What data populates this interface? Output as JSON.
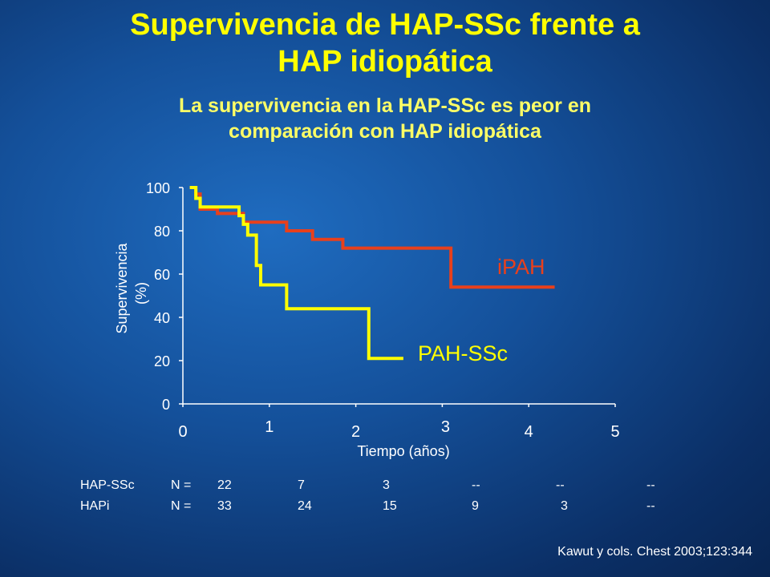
{
  "title_lines": [
    "Supervivencia de HAP-SSc frente a",
    "HAP idiopática"
  ],
  "subtitle_lines": [
    "La supervivencia en la HAP-SSc es peor en",
    "comparación con HAP idiopática"
  ],
  "chart_data": {
    "type": "line",
    "xlabel": "Tiempo (años)",
    "ylabel_lines": [
      "Supervivencia",
      "(%)"
    ],
    "xlim": [
      0,
      5
    ],
    "ylim": [
      0,
      100
    ],
    "x_ticks": [
      0,
      1,
      2,
      3,
      4,
      5
    ],
    "y_ticks": [
      0,
      20,
      40,
      60,
      80,
      100
    ],
    "grid": false,
    "series": [
      {
        "name": "iPAH",
        "color": "#e8401c",
        "steps": [
          [
            0.08,
            100
          ],
          [
            0.15,
            97
          ],
          [
            0.2,
            94
          ],
          [
            0.2,
            90
          ],
          [
            0.4,
            90
          ],
          [
            0.4,
            88
          ],
          [
            0.7,
            88
          ],
          [
            0.7,
            86
          ],
          [
            0.7,
            84
          ],
          [
            1.2,
            84
          ],
          [
            1.2,
            80
          ],
          [
            1.5,
            80
          ],
          [
            1.5,
            76
          ],
          [
            1.85,
            76
          ],
          [
            1.85,
            72
          ],
          [
            3.1,
            72
          ],
          [
            3.1,
            54
          ],
          [
            4.3,
            54
          ]
        ]
      },
      {
        "name": "PAH-SSc",
        "color": "#ffff00",
        "steps": [
          [
            0.08,
            100
          ],
          [
            0.15,
            95
          ],
          [
            0.2,
            91
          ],
          [
            0.65,
            91
          ],
          [
            0.65,
            87
          ],
          [
            0.7,
            83
          ],
          [
            0.75,
            78
          ],
          [
            0.85,
            72
          ],
          [
            0.85,
            64
          ],
          [
            0.9,
            64
          ],
          [
            0.9,
            55
          ],
          [
            1.2,
            55
          ],
          [
            1.2,
            44
          ],
          [
            2.15,
            44
          ],
          [
            2.15,
            21
          ],
          [
            2.55,
            21
          ]
        ]
      }
    ]
  },
  "risk_table": {
    "rows": [
      {
        "group": "HAP-SSc",
        "n_label": "N =",
        "values": [
          "22",
          "7",
          "3",
          "--",
          "--",
          "--"
        ]
      },
      {
        "group": "HAPi",
        "n_label": "N =",
        "values": [
          "33",
          "24",
          "15",
          "9",
          "3",
          "--"
        ]
      }
    ]
  },
  "citation": "Kawut y cols. Chest 2003;123:344"
}
